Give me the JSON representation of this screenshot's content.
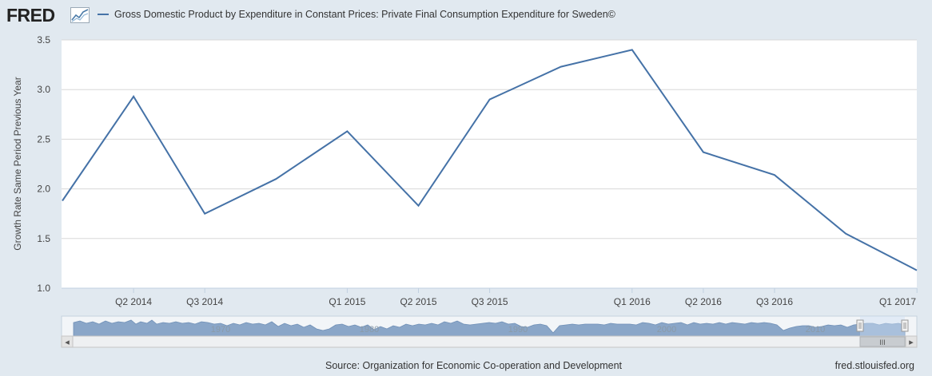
{
  "header": {
    "logo": "FRED",
    "logo_icon": "line-chart-icon",
    "legend_label": "Gross Domestic Product by Expenditure in Constant Prices: Private Final Consumption Expenditure for Sweden©"
  },
  "colors": {
    "series": "#4572a7",
    "background": "#e1e9f0",
    "plot_background": "#ffffff",
    "navigator_fill": "#8aa6c8"
  },
  "chart_data": {
    "type": "line",
    "title": "Gross Domestic Product by Expenditure in Constant Prices: Private Final Consumption Expenditure for Sweden©",
    "xlabel": "",
    "ylabel": "Growth Rate Same Period Previous Year",
    "ylim": [
      1.0,
      3.5
    ],
    "yticks": [
      "1.0",
      "1.5",
      "2.0",
      "2.5",
      "3.0",
      "3.5"
    ],
    "xticks": [
      "Q2 2014",
      "Q3 2014",
      "Q1 2015",
      "Q2 2015",
      "Q3 2015",
      "Q1 2016",
      "Q2 2016",
      "Q3 2016",
      "Q1 2017"
    ],
    "grid": true,
    "series": [
      {
        "name": "Gross Domestic Product by Expenditure in Constant Prices: Private Final Consumption Expenditure for Sweden©",
        "x": [
          "Q1 2014",
          "Q2 2014",
          "Q3 2014",
          "Q4 2014",
          "Q1 2015",
          "Q2 2015",
          "Q3 2015",
          "Q4 2015",
          "Q1 2016",
          "Q2 2016",
          "Q3 2016",
          "Q4 2016",
          "Q1 2017"
        ],
        "values": [
          1.88,
          2.93,
          1.75,
          2.1,
          2.58,
          1.83,
          2.9,
          3.23,
          3.4,
          2.37,
          2.14,
          1.55,
          1.18
        ]
      }
    ]
  },
  "navigator": {
    "labels": [
      "1970",
      "1980",
      "1990",
      "2000",
      "2010"
    ],
    "scroll_left_arrow": "◂",
    "scroll_right_arrow": "▸",
    "scroll_grip": "III"
  },
  "footer": {
    "source": "Source: Organization for Economic Co-operation and Development",
    "url": "fred.stlouisfed.org"
  }
}
